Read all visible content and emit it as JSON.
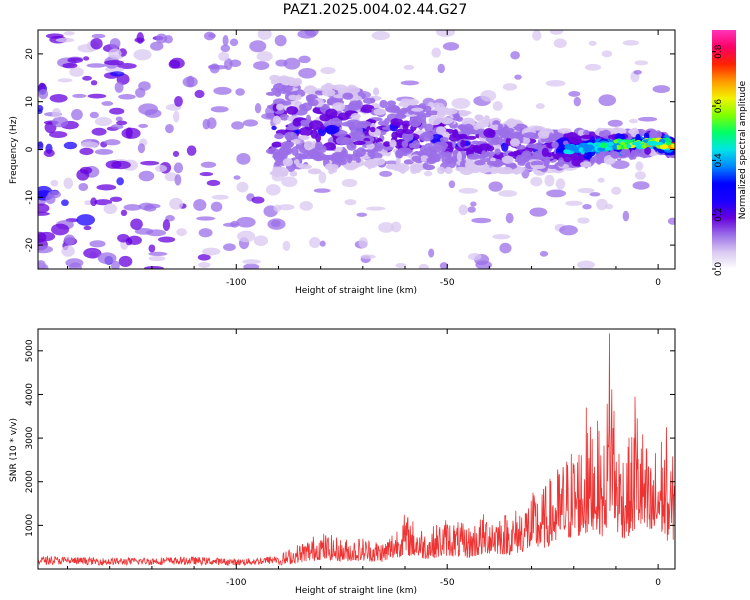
{
  "title": "PAZ1.2025.004.02.44.G27",
  "chart_data": [
    {
      "type": "heatmap",
      "title": "PAZ1.2025.004.02.44.G27",
      "xlabel": "Height of straight line (km)",
      "ylabel": "Frequency (Hz)",
      "xlim": [
        -147,
        4
      ],
      "ylim": [
        -25,
        25
      ],
      "xticks": [
        -100,
        -50,
        0
      ],
      "yticks": [
        -20,
        -10,
        0,
        10,
        20
      ],
      "colorbar": {
        "label": "Normalized spectral amplitude",
        "range": [
          0,
          0.88
        ],
        "ticks": [
          0.0,
          0.2,
          0.4,
          0.6,
          0.8
        ],
        "colors": [
          "#ffffff",
          "#d9c8f2",
          "#9b6fe8",
          "#6600dd",
          "#1a00ff",
          "#0000ff",
          "#0088ff",
          "#00e5e5",
          "#00ff66",
          "#7fff00",
          "#f2f200",
          "#ff9900",
          "#ff2200",
          "#ff0066",
          "#ff33bb"
        ]
      },
      "ridge": {
        "x": [
          -90,
          -80,
          -70,
          -60,
          -50,
          -40,
          -30,
          -20,
          -10,
          0,
          4
        ],
        "y": [
          5,
          4,
          5,
          3,
          2,
          1,
          0,
          0,
          1,
          1.5,
          0.5
        ]
      },
      "grid": false
    },
    {
      "type": "line",
      "xlabel": "Height of straight line (km)",
      "ylabel": "SNR (10 * v/v)",
      "xlim": [
        -147,
        4
      ],
      "ylim": [
        0,
        5500
      ],
      "xticks": [
        -100,
        -50,
        0
      ],
      "yticks": [
        1000,
        2000,
        3000,
        4000,
        5000
      ],
      "series": [
        {
          "color": "#ee3333",
          "envelope": {
            "x": [
              -147,
              -130,
              -110,
              -100,
              -95,
              -90,
              -85,
              -80,
              -75,
              -70,
              -65,
              -60,
              -55,
              -50,
              -45,
              -40,
              -35,
              -30,
              -27,
              -25,
              -20,
              -17,
              -15,
              -13,
              -11,
              -10,
              -8,
              -6,
              -5,
              -3,
              -2,
              -1,
              0,
              1,
              2,
              3,
              4
            ],
            "y": [
              300,
              250,
              280,
              230,
              260,
              330,
              600,
              870,
              700,
              750,
              650,
              1300,
              900,
              1200,
              1000,
              1400,
              1300,
              1750,
              1900,
              2200,
              2900,
              3100,
              3700,
              2800,
              5400,
              3300,
              2800,
              3200,
              3950,
              3000,
              2500,
              2700,
              3050,
              3250,
              2600,
              2500,
              2750
            ]
          },
          "peaks": [
            {
              "x": -11.5,
              "y": 5400
            },
            {
              "x": -17,
              "y": 3700
            },
            {
              "x": -5.5,
              "y": 3950
            },
            {
              "x": 2,
              "y": 3250
            }
          ]
        }
      ],
      "grid": false
    }
  ]
}
